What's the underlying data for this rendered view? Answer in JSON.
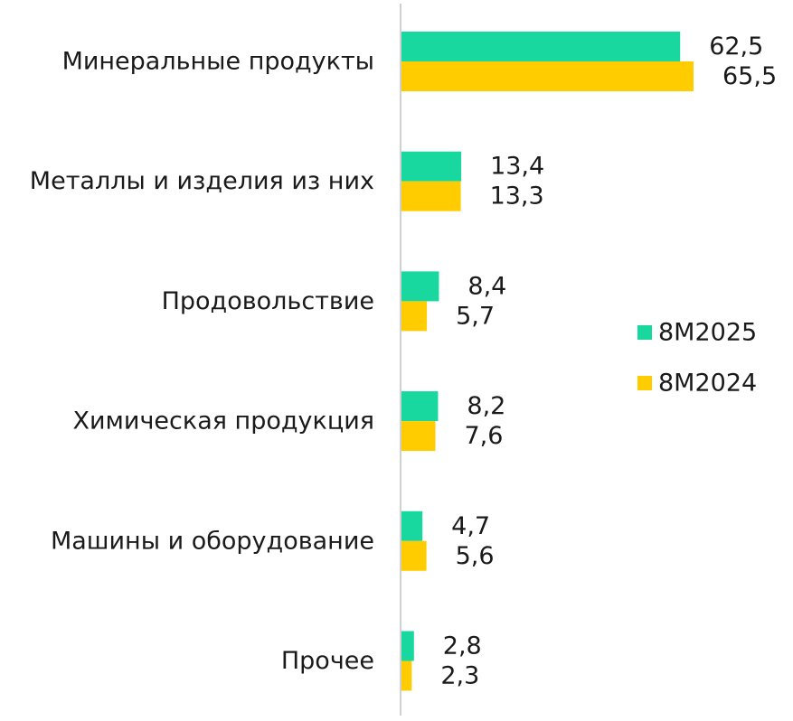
{
  "chart_data": {
    "type": "bar",
    "orientation": "horizontal",
    "categories": [
      "Минеральные продукты",
      "Металлы и изделия из них",
      "Продовольствие",
      "Химическая продукция",
      "Машины и оборудование",
      "Прочее"
    ],
    "series": [
      {
        "name": "8M2025",
        "color": "#18d8a0",
        "values": [
          62.5,
          13.4,
          8.4,
          8.2,
          4.7,
          2.8
        ],
        "labels": [
          "62,5",
          "13,4",
          "8,4",
          "8,2",
          "4,7",
          "2,8"
        ]
      },
      {
        "name": "8M2024",
        "color": "#ffcc00",
        "values": [
          65.5,
          13.3,
          5.7,
          7.6,
          5.6,
          2.3
        ],
        "labels": [
          "65,5",
          "13,3",
          "5,7",
          "7,6",
          "5,6",
          "2,3"
        ]
      }
    ],
    "xlim": [
      0,
      65.5
    ],
    "grid": false,
    "legend": "right",
    "axis_color": "#d0d0d0"
  }
}
